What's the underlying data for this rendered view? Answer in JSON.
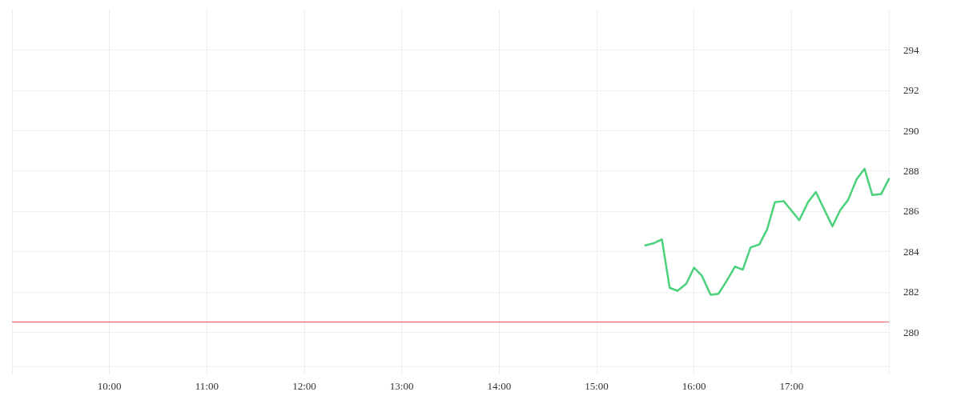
{
  "chart_data": {
    "type": "line",
    "x": [
      15.5,
      15.58,
      15.67,
      15.75,
      15.83,
      15.92,
      16,
      16.08,
      16.17,
      16.25,
      16.33,
      16.42,
      16.5,
      16.58,
      16.67,
      16.75,
      16.83,
      16.92,
      17.08,
      17.17,
      17.25,
      17.42,
      17.5,
      17.58,
      17.67,
      17.75,
      17.83,
      17.92,
      18
    ],
    "series": [
      {
        "color": "#4cd17b",
        "values": [
          284.3,
          284.4,
          284.6,
          282.2,
          282.05,
          282.4,
          283.2,
          282.8,
          281.85,
          281.9,
          282.5,
          283.25,
          283.1,
          284.2,
          284.35,
          285.1,
          286.45,
          286.5,
          285.55,
          286.45,
          286.95,
          285.25,
          286.05,
          286.55,
          287.6,
          288.1,
          286.8,
          286.85,
          287.6
        ]
      }
    ],
    "xlim": [
      9,
      18
    ],
    "xticks": [
      {
        "value": 9,
        "label": null
      },
      {
        "value": 10,
        "label": "10:00"
      },
      {
        "value": 11,
        "label": "11:00"
      },
      {
        "value": 12,
        "label": "12:00"
      },
      {
        "value": 13,
        "label": "13:00"
      },
      {
        "value": 14,
        "label": "14:00"
      },
      {
        "value": 15,
        "label": "15:00"
      },
      {
        "value": 16,
        "label": "16:00"
      },
      {
        "value": 17,
        "label": "17:00"
      },
      {
        "value": 18,
        "label": null
      }
    ],
    "ylim": [
      278.3,
      296
    ],
    "yticks": [
      280,
      282,
      284,
      286,
      288,
      290,
      292,
      294
    ],
    "ref_lines": [
      {
        "axis": "y",
        "value": 280.5,
        "color": "#f05a5a"
      }
    ],
    "grid": true,
    "line_style": "solid"
  }
}
